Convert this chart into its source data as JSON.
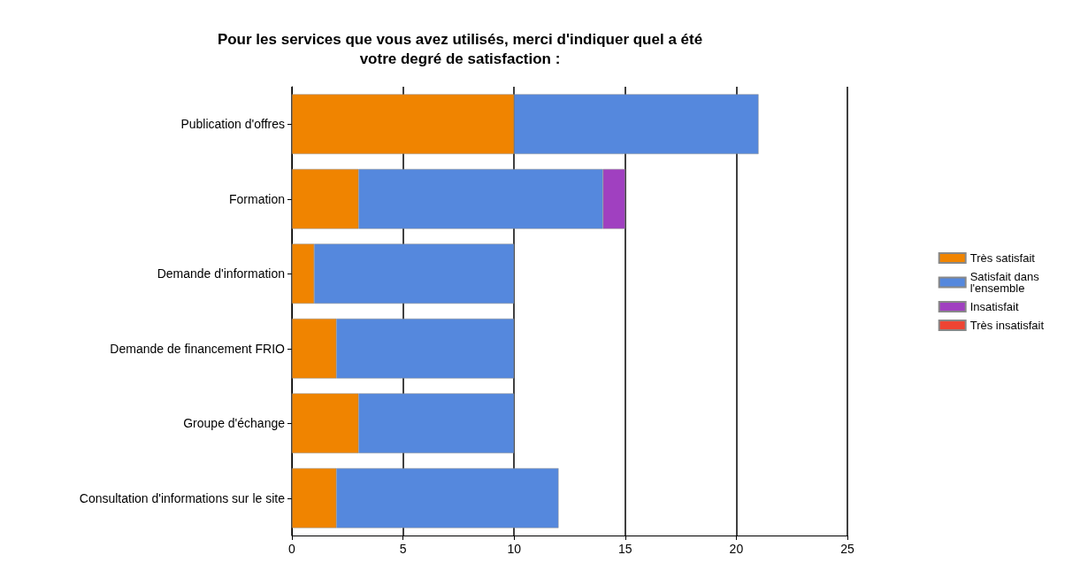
{
  "chart_data": {
    "type": "bar",
    "orientation": "horizontal",
    "stacked": true,
    "title": "Pour les services que vous avez utilisés, merci d'indiquer quel a été\nvotre degré de satisfaction :",
    "categories": [
      "Publication d'offres",
      "Formation",
      "Demande d'information",
      "Demande de financement FRIO",
      "Groupe d'échange",
      "Consultation d'informations sur le site"
    ],
    "series": [
      {
        "name": "Très satisfait",
        "color": "#f08400",
        "values": [
          10,
          3,
          1,
          2,
          3,
          2
        ]
      },
      {
        "name": "Satisfait dans l'ensemble",
        "color": "#5588dd",
        "values": [
          11,
          11,
          9,
          8,
          7,
          10
        ]
      },
      {
        "name": "Insatisfait",
        "color": "#a040c0",
        "values": [
          null,
          1,
          null,
          null,
          null,
          null
        ]
      },
      {
        "name": "Très insatisfait",
        "color": "#ee4433",
        "values": [
          null,
          null,
          null,
          null,
          null,
          null
        ]
      }
    ],
    "xlim": [
      0,
      25
    ],
    "xticks": [
      0,
      5,
      10,
      15,
      20,
      25
    ],
    "grid": "x",
    "legend": "right"
  }
}
